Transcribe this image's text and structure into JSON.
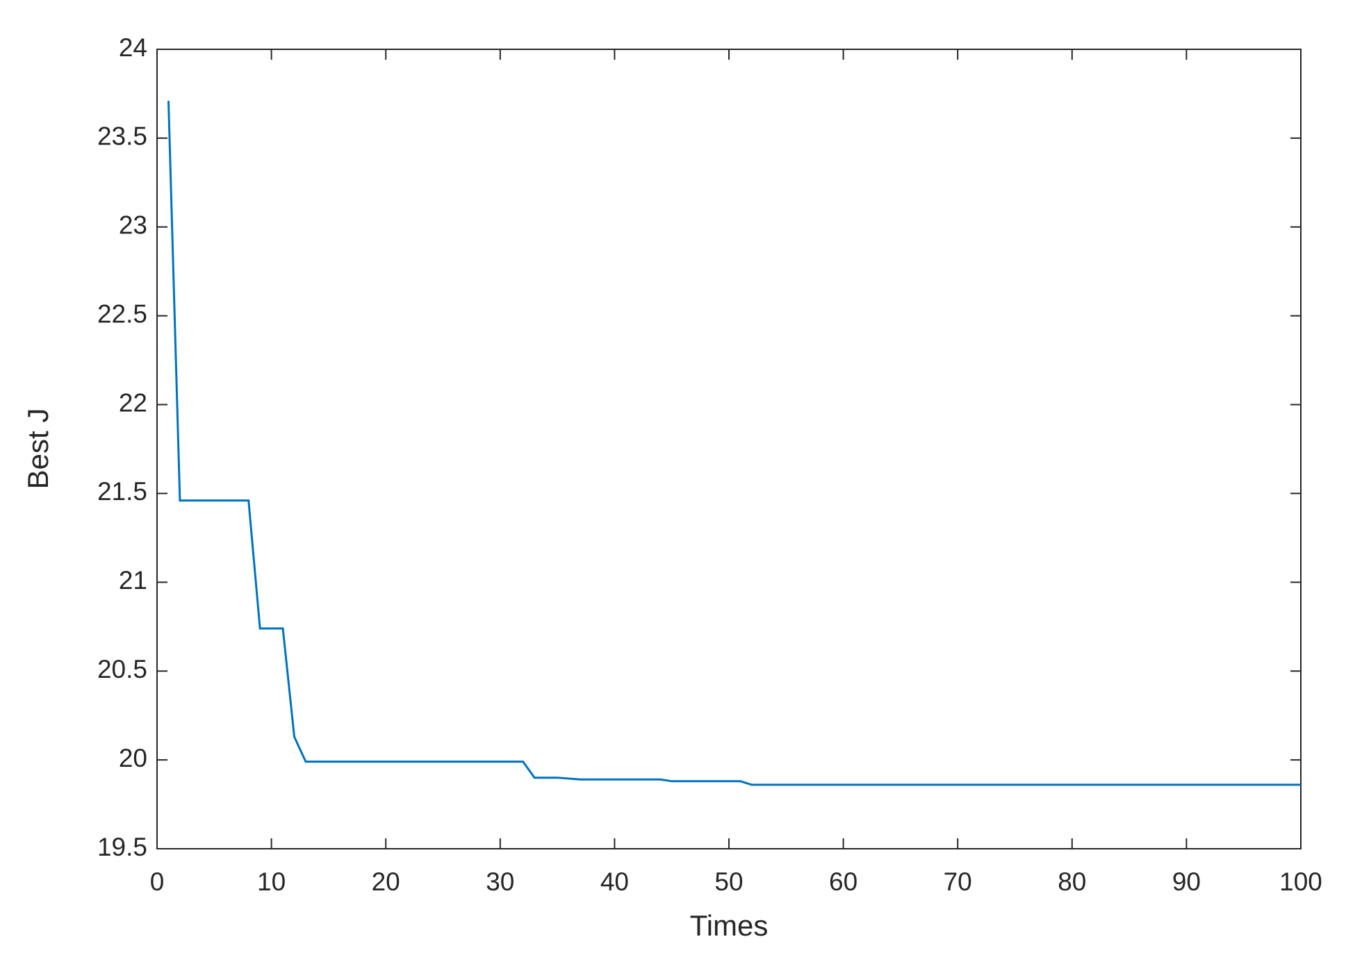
{
  "chart_data": {
    "type": "line",
    "x_label": "Times",
    "y_label": "Best J",
    "x": [
      1,
      2,
      8,
      9,
      11,
      12,
      13,
      32,
      33,
      35,
      37,
      44,
      45,
      51,
      52,
      100
    ],
    "series": [
      {
        "name": "Best J",
        "color": "#0072bd",
        "values": [
          23.71,
          21.46,
          21.46,
          20.74,
          20.74,
          20.13,
          19.99,
          19.99,
          19.9,
          19.9,
          19.89,
          19.89,
          19.88,
          19.88,
          19.86,
          19.86
        ]
      }
    ],
    "xlim": [
      0,
      100
    ],
    "xticks": [
      0,
      10,
      20,
      30,
      40,
      50,
      60,
      70,
      80,
      90,
      100
    ],
    "ylim": [
      19.5,
      24
    ],
    "yticks": [
      19.5,
      20,
      20.5,
      21,
      21.5,
      22,
      22.5,
      23,
      23.5,
      24
    ],
    "grid": false,
    "box": true
  }
}
